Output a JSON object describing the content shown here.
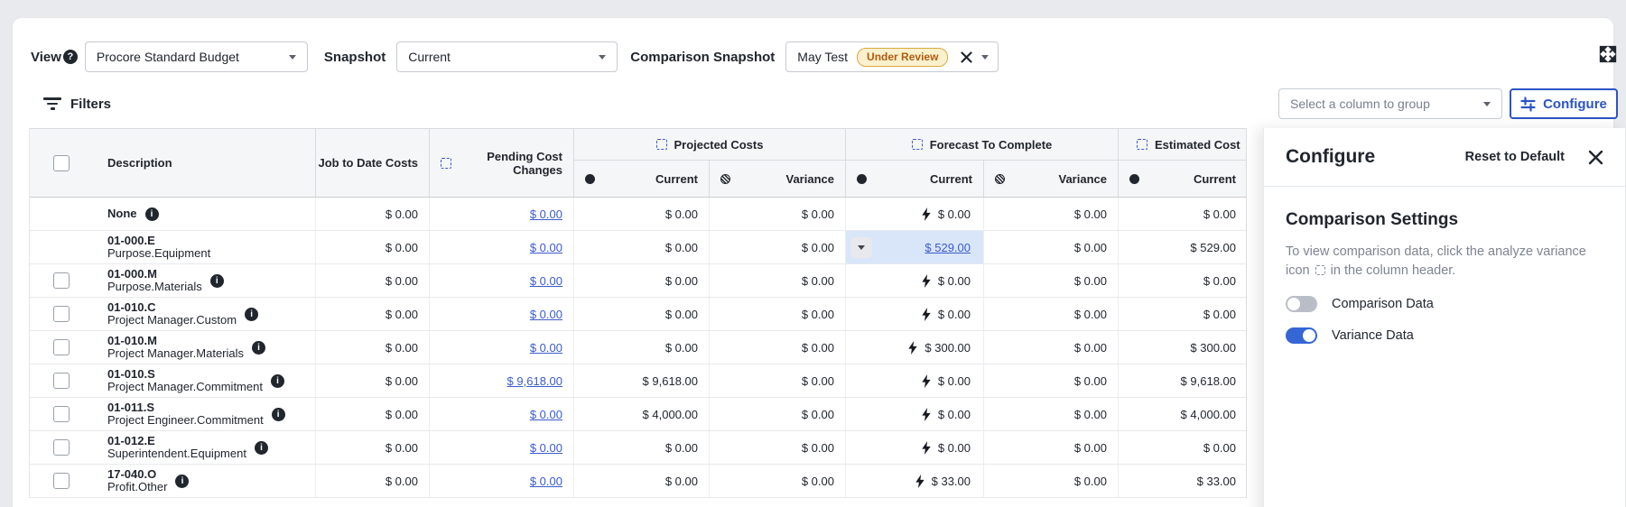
{
  "toolbar": {
    "view_label": "View",
    "view_value": "Procore Standard Budget",
    "snapshot_label": "Snapshot",
    "snapshot_value": "Current",
    "comparison_label": "Comparison Snapshot",
    "comparison_value": "May Test",
    "comparison_badge": "Under Review"
  },
  "filters_label": "Filters",
  "group_select_placeholder": "Select a column to group",
  "configure_button_label": "Configure",
  "table": {
    "columns": {
      "description": "Description",
      "job_to_date": "Job to Date Costs",
      "pending": "Pending Cost Changes",
      "projected": "Projected Costs",
      "forecast": "Forecast To Complete",
      "estimated": "Estimated Cost",
      "current": "Current",
      "variance": "Variance"
    },
    "rows": [
      {
        "code": "None",
        "name": "",
        "checkbox": false,
        "info": true,
        "jtd": "$ 0.00",
        "pending": "$ 0.00",
        "proj_current": "$ 0.00",
        "proj_variance": "$ 0.00",
        "fc_current": "$ 0.00",
        "fc_type": "bolt",
        "fc_variance": "$ 0.00",
        "est_current": "$ 0.00"
      },
      {
        "code": "01-000.E",
        "name": "Purpose.Equipment",
        "checkbox": false,
        "info": false,
        "jtd": "$ 0.00",
        "pending": "$ 0.00",
        "proj_current": "$ 0.00",
        "proj_variance": "$ 0.00",
        "fc_current": "$ 529.00",
        "fc_type": "link",
        "fc_variance": "$ 0.00",
        "est_current": "$ 529.00"
      },
      {
        "code": "01-000.M",
        "name": "Purpose.Materials",
        "checkbox": true,
        "info": true,
        "jtd": "$ 0.00",
        "pending": "$ 0.00",
        "proj_current": "$ 0.00",
        "proj_variance": "$ 0.00",
        "fc_current": "$ 0.00",
        "fc_type": "bolt",
        "fc_variance": "$ 0.00",
        "est_current": "$ 0.00"
      },
      {
        "code": "01-010.C",
        "name": "Project Manager.Custom",
        "checkbox": true,
        "info": true,
        "jtd": "$ 0.00",
        "pending": "$ 0.00",
        "proj_current": "$ 0.00",
        "proj_variance": "$ 0.00",
        "fc_current": "$ 0.00",
        "fc_type": "bolt",
        "fc_variance": "$ 0.00",
        "est_current": "$ 0.00"
      },
      {
        "code": "01-010.M",
        "name": "Project Manager.Materials",
        "checkbox": true,
        "info": true,
        "jtd": "$ 0.00",
        "pending": "$ 0.00",
        "proj_current": "$ 0.00",
        "proj_variance": "$ 0.00",
        "fc_current": "$ 300.00",
        "fc_type": "bolt",
        "fc_variance": "$ 0.00",
        "est_current": "$ 300.00"
      },
      {
        "code": "01-010.S",
        "name": "Project Manager.Commitment",
        "checkbox": true,
        "info": true,
        "jtd": "$ 0.00",
        "pending": "$ 9,618.00",
        "proj_current": "$ 9,618.00",
        "proj_variance": "$ 0.00",
        "fc_current": "$ 0.00",
        "fc_type": "bolt",
        "fc_variance": "$ 0.00",
        "est_current": "$ 9,618.00"
      },
      {
        "code": "01-011.S",
        "name": "Project Engineer.Commitment",
        "checkbox": true,
        "info": true,
        "jtd": "$ 0.00",
        "pending": "$ 0.00",
        "proj_current": "$ 4,000.00",
        "proj_variance": "$ 0.00",
        "fc_current": "$ 0.00",
        "fc_type": "bolt",
        "fc_variance": "$ 0.00",
        "est_current": "$ 4,000.00"
      },
      {
        "code": "01-012.E",
        "name": "Superintendent.Equipment",
        "checkbox": true,
        "info": true,
        "jtd": "$ 0.00",
        "pending": "$ 0.00",
        "proj_current": "$ 0.00",
        "proj_variance": "$ 0.00",
        "fc_current": "$ 0.00",
        "fc_type": "bolt",
        "fc_variance": "$ 0.00",
        "est_current": "$ 0.00"
      },
      {
        "code": "17-040.O",
        "name": "Profit.Other",
        "checkbox": true,
        "info": true,
        "jtd": "$ 0.00",
        "pending": "$ 0.00",
        "proj_current": "$ 0.00",
        "proj_variance": "$ 0.00",
        "fc_current": "$ 33.00",
        "fc_type": "bolt",
        "fc_variance": "$ 0.00",
        "est_current": "$ 33.00"
      }
    ]
  },
  "panel": {
    "title": "Configure",
    "reset_label": "Reset to Default",
    "section_title": "Comparison Settings",
    "description_before": "To view comparison data, click the analyze variance icon",
    "description_after": "in the column header.",
    "toggles": [
      {
        "label": "Comparison Data",
        "on": false
      },
      {
        "label": "Variance Data",
        "on": true
      }
    ]
  },
  "colors": {
    "accent_blue": "#2b54c4",
    "link_blue": "#3b5bce",
    "badge_bg": "#fbf1cd",
    "badge_border": "#dca93f",
    "badge_text": "#b05c10",
    "highlight_cell": "#d9e6fa",
    "toggle_on": "#3566d6",
    "header_bg": "#f5f6f7"
  }
}
